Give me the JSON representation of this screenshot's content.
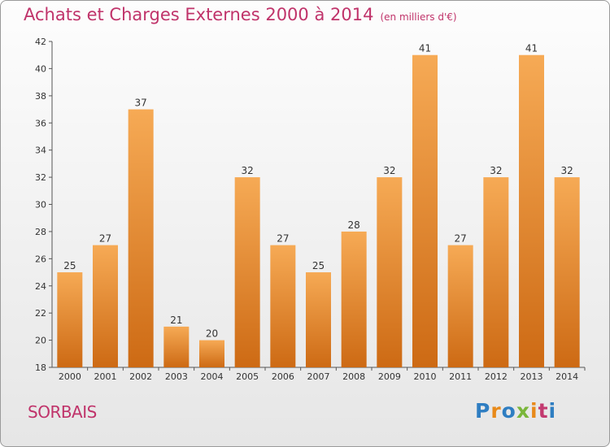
{
  "title": "Achats et Charges Externes 2000 à 2014",
  "subtitle": "(en milliers d'€)",
  "commune": "SORBAIS",
  "logo": {
    "text": "Proxiti",
    "colors": [
      "#2f7ec2",
      "#e88a1a",
      "#2f7ec2",
      "#7ab63a",
      "#e88a1a",
      "#c33a70",
      "#2f7ec2"
    ]
  },
  "colors": {
    "bar_light": "#f6aa55",
    "bar_dark": "#cd6a14",
    "title": "#c0336a"
  },
  "chart_data": {
    "type": "bar",
    "categories": [
      "2000",
      "2001",
      "2002",
      "2003",
      "2004",
      "2005",
      "2006",
      "2007",
      "2008",
      "2009",
      "2010",
      "2011",
      "2012",
      "2013",
      "2014"
    ],
    "values": [
      25,
      27,
      37,
      21,
      20,
      32,
      27,
      25,
      28,
      32,
      41,
      27,
      32,
      41,
      32
    ],
    "ylim": [
      18,
      42
    ],
    "yticks": [
      18,
      20,
      22,
      24,
      26,
      28,
      30,
      32,
      34,
      36,
      38,
      40,
      42
    ],
    "grid": false,
    "data_labels": true
  }
}
